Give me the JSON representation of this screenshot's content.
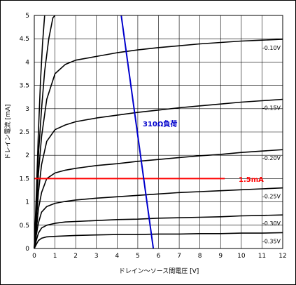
{
  "chart_data": {
    "type": "line",
    "xlabel": "ドレイン～ソース間電圧 [V]",
    "ylabel": "ドレイン電流 [mA]",
    "xlim": [
      0,
      12
    ],
    "ylim": [
      0,
      5
    ],
    "xticks": [
      "0",
      "1",
      "2",
      "3",
      "4",
      "5",
      "6",
      "7",
      "8",
      "9",
      "10",
      "11",
      "12"
    ],
    "yticks": [
      "0",
      "0.5",
      "1",
      "1.5",
      "2",
      "2.5",
      "3",
      "3.5",
      "4",
      "4.5",
      "5"
    ],
    "grid": true,
    "series": [
      {
        "name": "",
        "points": [
          [
            0,
            0
          ],
          [
            0.1,
            1.2
          ],
          [
            0.2,
            2.5
          ],
          [
            0.3,
            3.6
          ],
          [
            0.4,
            4.4
          ],
          [
            0.5,
            5.0
          ]
        ]
      },
      {
        "name": "",
        "points": [
          [
            0,
            0
          ],
          [
            0.1,
            1.0
          ],
          [
            0.2,
            2.0
          ],
          [
            0.35,
            3.0
          ],
          [
            0.5,
            3.8
          ],
          [
            0.7,
            4.5
          ],
          [
            0.9,
            4.95
          ],
          [
            1.0,
            5.0
          ]
        ]
      },
      {
        "name": "-0.10V",
        "points": [
          [
            0,
            0
          ],
          [
            0.1,
            0.8
          ],
          [
            0.2,
            1.6
          ],
          [
            0.35,
            2.4
          ],
          [
            0.6,
            3.2
          ],
          [
            1,
            3.75
          ],
          [
            1.5,
            3.95
          ],
          [
            2,
            4.04
          ],
          [
            3,
            4.12
          ],
          [
            4,
            4.2
          ],
          [
            5,
            4.26
          ],
          [
            6,
            4.31
          ],
          [
            7,
            4.35
          ],
          [
            8,
            4.39
          ],
          [
            9,
            4.42
          ],
          [
            10,
            4.45
          ],
          [
            11,
            4.47
          ],
          [
            12,
            4.49
          ]
        ]
      },
      {
        "name": "-0.15V",
        "points": [
          [
            0,
            0
          ],
          [
            0.1,
            0.6
          ],
          [
            0.2,
            1.2
          ],
          [
            0.35,
            1.8
          ],
          [
            0.6,
            2.3
          ],
          [
            1,
            2.55
          ],
          [
            1.5,
            2.65
          ],
          [
            2,
            2.72
          ],
          [
            3,
            2.8
          ],
          [
            4,
            2.86
          ],
          [
            5,
            2.92
          ],
          [
            6,
            2.97
          ],
          [
            7,
            3.02
          ],
          [
            8,
            3.06
          ],
          [
            9,
            3.1
          ],
          [
            10,
            3.14
          ],
          [
            11,
            3.17
          ],
          [
            12,
            3.2
          ]
        ]
      },
      {
        "name": "-0.20V",
        "points": [
          [
            0,
            0
          ],
          [
            0.1,
            0.4
          ],
          [
            0.2,
            0.85
          ],
          [
            0.35,
            1.2
          ],
          [
            0.6,
            1.5
          ],
          [
            1,
            1.62
          ],
          [
            1.5,
            1.68
          ],
          [
            2,
            1.72
          ],
          [
            3,
            1.78
          ],
          [
            4,
            1.82
          ],
          [
            5,
            1.87
          ],
          [
            6,
            1.91
          ],
          [
            7,
            1.95
          ],
          [
            8,
            1.99
          ],
          [
            9,
            2.02
          ],
          [
            10,
            2.06
          ],
          [
            11,
            2.09
          ],
          [
            12,
            2.12
          ]
        ]
      },
      {
        "name": "-0.25V",
        "points": [
          [
            0,
            0
          ],
          [
            0.1,
            0.3
          ],
          [
            0.2,
            0.55
          ],
          [
            0.35,
            0.78
          ],
          [
            0.6,
            0.9
          ],
          [
            1,
            0.97
          ],
          [
            1.5,
            1.01
          ],
          [
            2,
            1.04
          ],
          [
            3,
            1.08
          ],
          [
            4,
            1.11
          ],
          [
            5,
            1.14
          ],
          [
            6,
            1.17
          ],
          [
            7,
            1.2
          ],
          [
            8,
            1.22
          ],
          [
            9,
            1.24
          ],
          [
            10,
            1.26
          ],
          [
            11,
            1.28
          ],
          [
            12,
            1.3
          ]
        ]
      },
      {
        "name": "-0.30V",
        "points": [
          [
            0,
            0
          ],
          [
            0.1,
            0.18
          ],
          [
            0.2,
            0.33
          ],
          [
            0.35,
            0.44
          ],
          [
            0.6,
            0.5
          ],
          [
            1,
            0.54
          ],
          [
            1.5,
            0.57
          ],
          [
            2,
            0.58
          ],
          [
            3,
            0.6
          ],
          [
            4,
            0.62
          ],
          [
            5,
            0.63
          ],
          [
            6,
            0.65
          ],
          [
            7,
            0.66
          ],
          [
            8,
            0.67
          ],
          [
            9,
            0.68
          ],
          [
            10,
            0.7
          ],
          [
            11,
            0.71
          ],
          [
            12,
            0.72
          ]
        ]
      },
      {
        "name": "-0.35V",
        "points": [
          [
            0,
            0
          ],
          [
            0.1,
            0.09
          ],
          [
            0.2,
            0.17
          ],
          [
            0.35,
            0.22
          ],
          [
            0.6,
            0.25
          ],
          [
            1,
            0.26
          ],
          [
            1.5,
            0.27
          ],
          [
            2,
            0.28
          ],
          [
            3,
            0.29
          ],
          [
            4,
            0.3
          ],
          [
            5,
            0.3
          ],
          [
            6,
            0.31
          ],
          [
            7,
            0.31
          ],
          [
            8,
            0.32
          ],
          [
            9,
            0.32
          ],
          [
            10,
            0.33
          ],
          [
            11,
            0.33
          ],
          [
            12,
            0.34
          ]
        ]
      }
    ],
    "load_line": {
      "label": "310Ω負荷",
      "color": "#0000cc",
      "points": [
        [
          4.2,
          5.0
        ],
        [
          5.75,
          0
        ]
      ]
    },
    "hline": {
      "label": "1.5mA",
      "y": 1.5,
      "color": "#ff0000",
      "x_range": [
        0,
        9.2
      ]
    }
  }
}
